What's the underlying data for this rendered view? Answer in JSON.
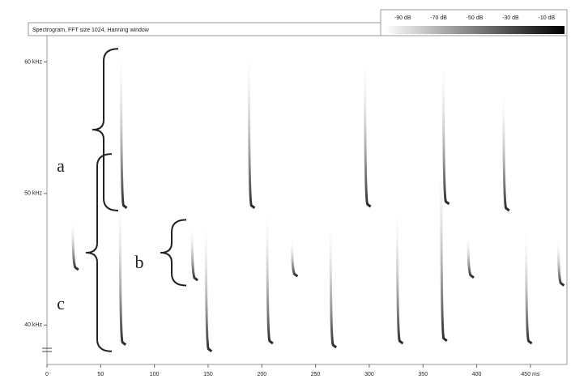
{
  "chart_data": {
    "type": "spectrogram",
    "title": "Spectrogram, FFT size 1024, Hanning window",
    "xlim": [
      0,
      484
    ],
    "xticks": [
      0,
      50,
      100,
      150,
      200,
      250,
      300,
      350,
      400,
      {
        "value": 450,
        "label": "450 ms"
      }
    ],
    "ylim": [
      37,
      62
    ],
    "yticks": [
      {
        "value": 40,
        "label": "40 kHz"
      },
      {
        "value": 50,
        "label": "50 kHz"
      },
      {
        "value": 60,
        "label": "60 kHz"
      }
    ],
    "colorbar": {
      "clim": [
        -100,
        0
      ],
      "ticks": [
        {
          "value": -90,
          "label": "-90 dB"
        },
        {
          "value": -70,
          "label": "-70 dB"
        },
        {
          "value": -50,
          "label": "-50 dB"
        },
        {
          "value": -30,
          "label": "-30 dB"
        },
        {
          "value": -10,
          "label": "-10 dB"
        }
      ]
    },
    "series": [
      {
        "name": "a",
        "color": "#2a2a3a",
        "x": [
          69,
          188,
          296,
          369,
          425
        ],
        "f_high": [
          61,
          61,
          60.5,
          60,
          58
        ],
        "f_low": [
          48.9,
          48.9,
          49,
          49.2,
          48.7
        ]
      },
      {
        "name": "b",
        "color": "#3a3a4a",
        "x": [
          24,
          135,
          228,
          392,
          476
        ],
        "f_high": [
          48,
          47.5,
          46.5,
          46.8,
          46.5
        ],
        "f_low": [
          44.2,
          43.4,
          43.7,
          43.6,
          43
        ]
      },
      {
        "name": "c",
        "color": "#1a1a2a",
        "x": [
          68,
          148,
          205,
          264,
          326,
          367,
          446
        ],
        "f_high": [
          50,
          48,
          49,
          48,
          49,
          53,
          47.5
        ],
        "f_low": [
          38.5,
          38,
          38.6,
          38.3,
          38.6,
          38.8,
          38.6
        ]
      }
    ]
  }
}
